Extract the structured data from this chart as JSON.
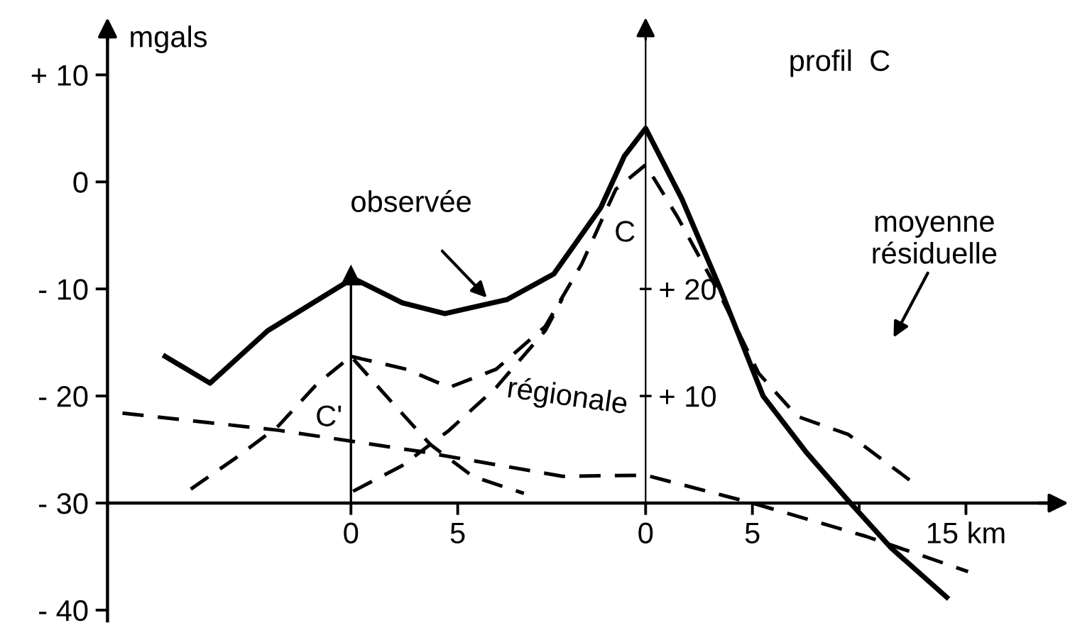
{
  "chart_data": {
    "type": "line",
    "title": "profil  C",
    "ylabel": "mgals",
    "xlim": [
      -25.2,
      19.1
    ],
    "ylim": [
      -41,
      14.6
    ],
    "y2lim": [
      -11,
      44.6
    ],
    "x2lim": [
      -11.4,
      32.9
    ],
    "x2ticks": [
      0,
      5
    ],
    "xticks": [
      0,
      5,
      {
        "value": 10,
        "label": null
      },
      {
        "value": 15,
        "label": "15 km"
      }
    ],
    "yticks": [
      {
        "value": 10,
        "label": "+ 10"
      },
      0,
      {
        "value": -10,
        "label": "- 10"
      },
      {
        "value": -20,
        "label": "- 20"
      },
      {
        "value": -30,
        "label": "- 30"
      },
      {
        "value": -40,
        "label": "- 40"
      }
    ],
    "y2ticks": [
      {
        "value": 20,
        "label": "+ 20"
      },
      {
        "value": 10,
        "label": "+ 10"
      }
    ],
    "grid": false,
    "legend": false,
    "marker": "none",
    "series": [
      {
        "color": "#000000",
        "line_style": "solid",
        "x": [
          -22.5,
          -20.4,
          -17.7,
          -13.7,
          -11.4,
          -9.4,
          -6.5,
          -4.3,
          -2.1,
          -1.0,
          0,
          1.7,
          3.5,
          5.5,
          7.5,
          9.5,
          11.5,
          14.1
        ],
        "values": [
          -16.3,
          -18.8,
          -13.9,
          -9.0,
          -11.3,
          -12.3,
          -11.0,
          -8.6,
          -2.4,
          2.4,
          5.0,
          -1.6,
          -10,
          -20,
          -25.2,
          -29.8,
          -34.2,
          -38.8
        ]
      },
      {
        "color": "#000000",
        "line_style": "dashed",
        "x": [
          -24.5,
          -17.2,
          -10.5,
          -3.9,
          0,
          5,
          10.3,
          15.1
        ],
        "values": [
          -21.6,
          -23.2,
          -25.2,
          -27.5,
          -27.4,
          -30,
          -33.1,
          -36.4
        ]
      },
      {
        "color": "#000000",
        "line_style": "dashed",
        "x": [
          -21.3,
          -19.2,
          -17.2,
          -15.4,
          -13.8,
          -12.1,
          -10.1,
          -8.1,
          -5.7
        ],
        "values": [
          -28.7,
          -25.8,
          -22.8,
          -18.9,
          -16.3,
          -20.1,
          -24.5,
          -27.5,
          -29.1
        ]
      },
      {
        "color": "#000000",
        "line_style": "dashed",
        "x": [
          -13.8,
          -11.2,
          -9.2,
          -7,
          -4.7,
          -3,
          -1.4,
          0,
          1.5,
          3.5,
          5.3,
          7.1,
          9.5,
          12.6
        ],
        "values": [
          -16.3,
          -17.5,
          -19.2,
          -17.5,
          -13.5,
          -7.7,
          -0.7,
          1.6,
          -3.3,
          -10.6,
          -17.9,
          -21.9,
          -23.6,
          -28.2
        ]
      },
      {
        "color": "#000000",
        "line_style": "dashed",
        "x": [
          -13.7,
          -11.4,
          -9.2,
          -7,
          -4.7,
          -3.9
        ],
        "values": [
          -28.9,
          -26.5,
          -23.2,
          -19.2,
          -13.9,
          -10.9
        ]
      }
    ],
    "ref_lines": [
      {
        "axis": "x",
        "value": -13.8,
        "color": "#000000"
      }
    ],
    "annotations": [
      "observée",
      "C",
      "C'",
      "régionale",
      "moyenne\nrésiduelle"
    ]
  }
}
